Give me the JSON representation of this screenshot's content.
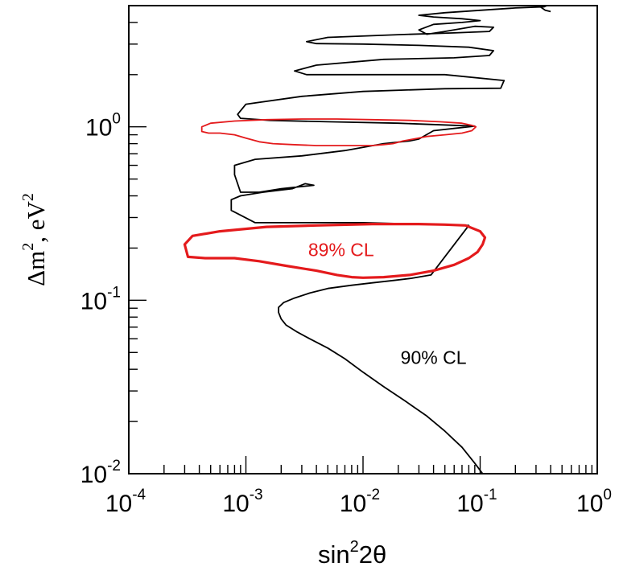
{
  "chart_data": {
    "type": "line",
    "x_scale": "log",
    "y_scale": "log",
    "xlim": [
      0.0001,
      1
    ],
    "ylim": [
      0.01,
      5
    ],
    "xlabel_base": "sin",
    "xlabel_sup": "2",
    "xlabel_rest": "2θ",
    "ylabel_parts": [
      "Δm",
      "2",
      ", eV",
      "2"
    ],
    "x_ticks": [
      {
        "value": 0.0001,
        "base": "10",
        "exp": "-4"
      },
      {
        "value": 0.001,
        "base": "10",
        "exp": "-3"
      },
      {
        "value": 0.01,
        "base": "10",
        "exp": "-2"
      },
      {
        "value": 0.1,
        "base": "10",
        "exp": "-1"
      },
      {
        "value": 1,
        "base": "10",
        "exp": "0"
      }
    ],
    "y_ticks": [
      {
        "value": 0.01,
        "base": "10",
        "exp": "-2"
      },
      {
        "value": 0.1,
        "base": "10",
        "exp": "-1"
      },
      {
        "value": 1,
        "base": "10",
        "exp": "0"
      }
    ],
    "annotations": [
      {
        "text": "90% CL",
        "x": 0.04,
        "y": 0.043,
        "color": "#000000"
      },
      {
        "text": "89% CL",
        "x": 0.0065,
        "y": 0.18,
        "color": "#e41a1c"
      }
    ],
    "series": [
      {
        "color": "#000000",
        "stroke": "thin",
        "closed": false,
        "x": [
          0.105,
          0.09,
          0.07,
          0.05,
          0.035,
          0.023,
          0.015,
          0.01,
          0.007,
          0.005,
          0.0035,
          0.0027,
          0.0022,
          0.002,
          0.0019,
          0.0019,
          0.0021,
          0.0026,
          0.0035,
          0.005,
          0.008,
          0.012,
          0.018,
          0.026,
          0.038,
          0.08,
          0.01,
          0.003,
          0.0012,
          0.00075,
          0.00075,
          0.0009,
          0.0014,
          0.0025,
          0.0032,
          0.0038,
          0.002,
          0.0013,
          0.0009,
          0.0008,
          0.0008,
          0.0012,
          0.003,
          0.007,
          0.015,
          0.025,
          0.03,
          0.04,
          0.09,
          0.02,
          0.005,
          0.0016,
          0.0009,
          0.00085,
          0.001,
          0.003,
          0.01,
          0.05,
          0.15,
          0.16,
          0.05,
          0.01,
          0.0033,
          0.0026,
          0.004,
          0.015,
          0.06,
          0.12,
          0.13,
          0.08,
          0.03,
          0.01,
          0.004,
          0.0033,
          0.005,
          0.02,
          0.06,
          0.12,
          0.13,
          0.09,
          0.05,
          0.035,
          0.03,
          0.04,
          0.07,
          0.1,
          0.07,
          0.04,
          0.03,
          0.05,
          0.1,
          0.2,
          0.35,
          0.37,
          0.33,
          0.36,
          0.4
        ],
        "y": [
          0.01,
          0.0115,
          0.0142,
          0.0176,
          0.0215,
          0.0262,
          0.0318,
          0.0385,
          0.046,
          0.053,
          0.06,
          0.066,
          0.072,
          0.078,
          0.085,
          0.091,
          0.097,
          0.103,
          0.11,
          0.117,
          0.122,
          0.126,
          0.13,
          0.134,
          0.14,
          0.27,
          0.28,
          0.28,
          0.28,
          0.33,
          0.38,
          0.4,
          0.42,
          0.44,
          0.47,
          0.46,
          0.44,
          0.42,
          0.42,
          0.53,
          0.6,
          0.65,
          0.68,
          0.73,
          0.8,
          0.83,
          0.85,
          0.95,
          1.01,
          1.05,
          1.07,
          1.09,
          1.12,
          1.18,
          1.35,
          1.5,
          1.6,
          1.66,
          1.67,
          1.85,
          2.0,
          2.0,
          2.0,
          2.1,
          2.27,
          2.45,
          2.5,
          2.58,
          2.75,
          2.88,
          2.95,
          3.0,
          3.02,
          3.1,
          3.28,
          3.4,
          3.48,
          3.55,
          3.75,
          3.8,
          3.55,
          3.42,
          3.62,
          3.9,
          4.0,
          4.1,
          4.2,
          4.3,
          4.4,
          4.55,
          4.7,
          4.85,
          4.92,
          5.0,
          4.9,
          4.7,
          4.62
        ]
      },
      {
        "color": "#e41a1c",
        "stroke": "thin",
        "closed": true,
        "x": [
          0.092,
          0.085,
          0.07,
          0.05,
          0.035,
          0.027,
          0.022,
          0.018,
          0.015,
          0.012,
          0.009,
          0.006,
          0.004,
          0.0025,
          0.0017,
          0.0013,
          0.001,
          0.0008,
          0.0006,
          0.00048,
          0.00042,
          0.00042,
          0.0005,
          0.0008,
          0.0015,
          0.003,
          0.006,
          0.012,
          0.025,
          0.045,
          0.07,
          0.085
        ],
        "y": [
          1.0,
          0.95,
          0.92,
          0.9,
          0.88,
          0.85,
          0.83,
          0.8,
          0.79,
          0.78,
          0.78,
          0.78,
          0.78,
          0.79,
          0.8,
          0.82,
          0.86,
          0.9,
          0.92,
          0.92,
          0.94,
          1.0,
          1.05,
          1.08,
          1.1,
          1.11,
          1.11,
          1.1,
          1.09,
          1.07,
          1.05,
          1.02
        ]
      },
      {
        "color": "#e41a1c",
        "stroke": "thick",
        "closed": true,
        "x": [
          0.075,
          0.1,
          0.11,
          0.105,
          0.095,
          0.08,
          0.06,
          0.04,
          0.025,
          0.015,
          0.01,
          0.008,
          0.006,
          0.004,
          0.0022,
          0.0013,
          0.0008,
          0.00045,
          0.00032,
          0.0003,
          0.00035,
          0.0006,
          0.0015,
          0.004,
          0.012,
          0.03,
          0.05
        ],
        "y": [
          0.27,
          0.25,
          0.23,
          0.21,
          0.19,
          0.175,
          0.16,
          0.148,
          0.14,
          0.136,
          0.135,
          0.136,
          0.14,
          0.148,
          0.158,
          0.168,
          0.175,
          0.175,
          0.178,
          0.21,
          0.235,
          0.25,
          0.265,
          0.27,
          0.275,
          0.275,
          0.273
        ]
      }
    ]
  }
}
